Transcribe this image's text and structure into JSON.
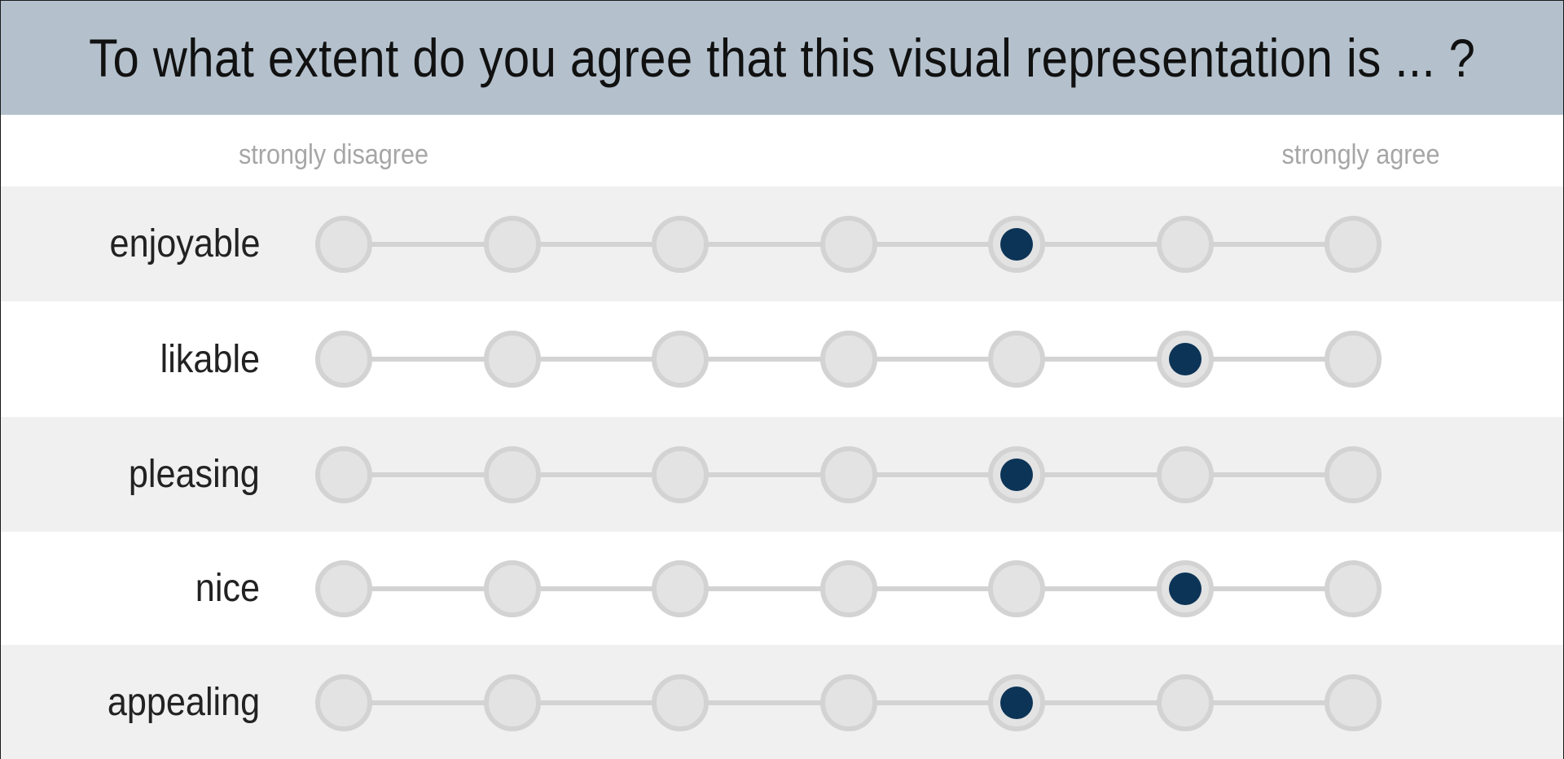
{
  "header": {
    "title": "To what extent do you agree that this visual representation is ... ?"
  },
  "scale": {
    "min_label": "strongly disagree",
    "max_label": "strongly agree",
    "points": 7
  },
  "colors": {
    "header_bg": "#b4c1cd",
    "selected": "#0c3457",
    "unselected": "#e3e3e3",
    "row_shade": "#f0f0f0"
  },
  "items": [
    {
      "label": "enjoyable",
      "selected": 5
    },
    {
      "label": "likable",
      "selected": 6
    },
    {
      "label": "pleasing",
      "selected": 5
    },
    {
      "label": "nice",
      "selected": 6
    },
    {
      "label": "appealing",
      "selected": 5
    }
  ]
}
